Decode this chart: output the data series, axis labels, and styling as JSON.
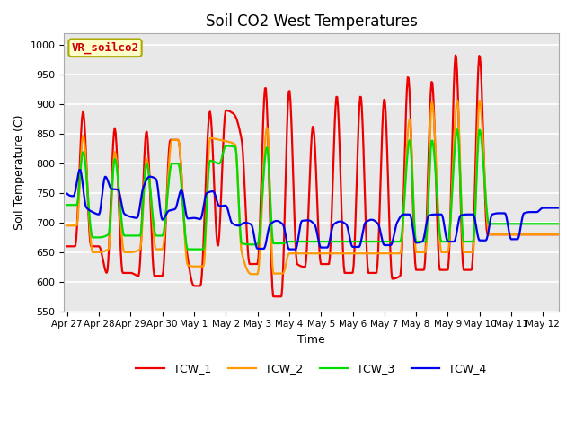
{
  "title": "Soil CO2 West Temperatures",
  "xlabel": "Time",
  "ylabel": "Soil Temperature (C)",
  "ylim": [
    550,
    1020
  ],
  "xlim": [
    -0.1,
    15.5
  ],
  "annotation_text": "VR_soilco2",
  "legend_labels": [
    "TCW_1",
    "TCW_2",
    "TCW_3",
    "TCW_4"
  ],
  "colors": [
    "#ee0000",
    "#ff9900",
    "#00dd00",
    "#0000ee"
  ],
  "x_tick_labels": [
    "Apr 27",
    "Apr 28",
    "Apr 29",
    "Apr 30",
    "May 1",
    "May 2",
    "May 3",
    "May 4",
    "May 5",
    "May 6",
    "May 7",
    "May 8",
    "May 9",
    "May 10",
    "May 11",
    "May 12"
  ],
  "x_tick_positions": [
    0,
    1,
    2,
    3,
    4,
    5,
    6,
    7,
    8,
    9,
    10,
    11,
    12,
    13,
    14,
    15
  ],
  "background_color": "#e8e8e8",
  "grid_color": "#ffffff",
  "tcw1_x": [
    0.0,
    0.25,
    0.5,
    0.75,
    1.0,
    1.25,
    1.5,
    1.75,
    2.0,
    2.25,
    2.5,
    2.75,
    3.0,
    3.25,
    3.5,
    3.75,
    4.0,
    4.2,
    4.5,
    4.75,
    5.0,
    5.25,
    5.5,
    5.75,
    6.0,
    6.25,
    6.5,
    6.75,
    7.0,
    7.25,
    7.5,
    7.75,
    8.0,
    8.25,
    8.5,
    8.75,
    9.0,
    9.25,
    9.5,
    9.75,
    10.0,
    10.25,
    10.5,
    10.75,
    11.0,
    11.25,
    11.5,
    11.75,
    12.0,
    12.25,
    12.5,
    12.75,
    13.0,
    13.25,
    13.5,
    13.75,
    14.0,
    14.25,
    14.5,
    14.75,
    15.0,
    15.5
  ],
  "tcw1_y": [
    660,
    660,
    888,
    660,
    660,
    615,
    860,
    615,
    615,
    610,
    855,
    610,
    610,
    840,
    840,
    660,
    593,
    593,
    888,
    660,
    890,
    884,
    840,
    630,
    630,
    930,
    575,
    575,
    925,
    630,
    625,
    864,
    630,
    630,
    915,
    615,
    615,
    915,
    615,
    615,
    910,
    605,
    610,
    948,
    620,
    620,
    940,
    620,
    620,
    985,
    620,
    620,
    984,
    680,
    680,
    680,
    680,
    680,
    680,
    680,
    680,
    680
  ],
  "tcw2_x": [
    0.0,
    0.3,
    0.5,
    0.8,
    1.0,
    1.3,
    1.5,
    1.8,
    2.0,
    2.3,
    2.5,
    2.8,
    3.0,
    3.3,
    3.5,
    3.8,
    4.0,
    4.3,
    4.5,
    4.8,
    5.0,
    5.3,
    5.5,
    5.8,
    6.0,
    6.3,
    6.5,
    6.8,
    7.0,
    7.3,
    7.5,
    7.8,
    8.0,
    8.3,
    8.5,
    8.8,
    9.0,
    9.3,
    9.5,
    9.8,
    10.0,
    10.3,
    10.5,
    10.8,
    11.0,
    11.3,
    11.5,
    11.8,
    12.0,
    12.3,
    12.5,
    12.8,
    13.0,
    13.3,
    13.5,
    13.8,
    14.0,
    14.3,
    14.5,
    14.8,
    15.0,
    15.5
  ],
  "tcw2_y": [
    695,
    695,
    848,
    650,
    650,
    655,
    820,
    650,
    650,
    655,
    808,
    655,
    655,
    840,
    840,
    628,
    626,
    626,
    843,
    840,
    838,
    832,
    650,
    613,
    613,
    862,
    614,
    614,
    648,
    648,
    648,
    648,
    648,
    648,
    648,
    648,
    648,
    648,
    648,
    648,
    648,
    648,
    648,
    875,
    650,
    650,
    905,
    650,
    650,
    908,
    650,
    650,
    908,
    680,
    680,
    680,
    680,
    680,
    680,
    680,
    680,
    680
  ],
  "tcw3_x": [
    0.0,
    0.3,
    0.5,
    0.8,
    1.0,
    1.3,
    1.5,
    1.8,
    2.0,
    2.3,
    2.5,
    2.8,
    3.0,
    3.3,
    3.5,
    3.8,
    4.0,
    4.3,
    4.5,
    4.8,
    5.0,
    5.3,
    5.5,
    5.8,
    6.0,
    6.3,
    6.5,
    6.8,
    7.0,
    7.3,
    7.5,
    7.8,
    8.0,
    8.3,
    8.5,
    8.8,
    9.0,
    9.3,
    9.5,
    9.8,
    10.0,
    10.3,
    10.5,
    10.8,
    11.0,
    11.3,
    11.5,
    11.8,
    12.0,
    12.3,
    12.5,
    12.8,
    13.0,
    13.3,
    13.5,
    13.8,
    14.0,
    14.3,
    14.5,
    14.8,
    15.0,
    15.5
  ],
  "tcw3_y": [
    730,
    730,
    820,
    675,
    675,
    680,
    808,
    678,
    678,
    678,
    800,
    678,
    678,
    800,
    800,
    655,
    655,
    655,
    805,
    800,
    830,
    828,
    665,
    663,
    663,
    828,
    665,
    665,
    668,
    668,
    668,
    668,
    668,
    668,
    668,
    668,
    668,
    668,
    668,
    668,
    668,
    668,
    668,
    840,
    668,
    668,
    840,
    668,
    668,
    858,
    668,
    668,
    858,
    698,
    698,
    698,
    698,
    698,
    698,
    698,
    698,
    698
  ],
  "tcw4_x": [
    0.0,
    0.2,
    0.4,
    0.6,
    0.8,
    1.0,
    1.2,
    1.4,
    1.6,
    1.8,
    2.0,
    2.2,
    2.4,
    2.6,
    2.8,
    3.0,
    3.2,
    3.4,
    3.6,
    3.8,
    4.0,
    4.2,
    4.4,
    4.6,
    4.8,
    5.0,
    5.2,
    5.4,
    5.6,
    5.8,
    6.0,
    6.2,
    6.4,
    6.6,
    6.8,
    7.0,
    7.2,
    7.4,
    7.6,
    7.8,
    8.0,
    8.2,
    8.4,
    8.6,
    8.8,
    9.0,
    9.2,
    9.4,
    9.6,
    9.8,
    10.0,
    10.2,
    10.4,
    10.6,
    10.8,
    11.0,
    11.2,
    11.4,
    11.6,
    11.8,
    12.0,
    12.2,
    12.4,
    12.6,
    12.8,
    13.0,
    13.2,
    13.4,
    13.6,
    13.8,
    14.0,
    14.2,
    14.4,
    14.6,
    14.8,
    15.0,
    15.5
  ],
  "tcw4_y": [
    749,
    745,
    790,
    726,
    718,
    714,
    778,
    757,
    756,
    715,
    710,
    708,
    760,
    778,
    774,
    705,
    720,
    723,
    755,
    707,
    708,
    706,
    750,
    753,
    728,
    729,
    699,
    695,
    700,
    697,
    656,
    656,
    697,
    703,
    697,
    655,
    655,
    703,
    704,
    697,
    658,
    658,
    697,
    702,
    697,
    659,
    659,
    700,
    705,
    698,
    662,
    662,
    700,
    714,
    714,
    666,
    668,
    712,
    714,
    714,
    668,
    668,
    712,
    714,
    714,
    670,
    670,
    714,
    716,
    716,
    672,
    672,
    716,
    718,
    718,
    725,
    725
  ]
}
